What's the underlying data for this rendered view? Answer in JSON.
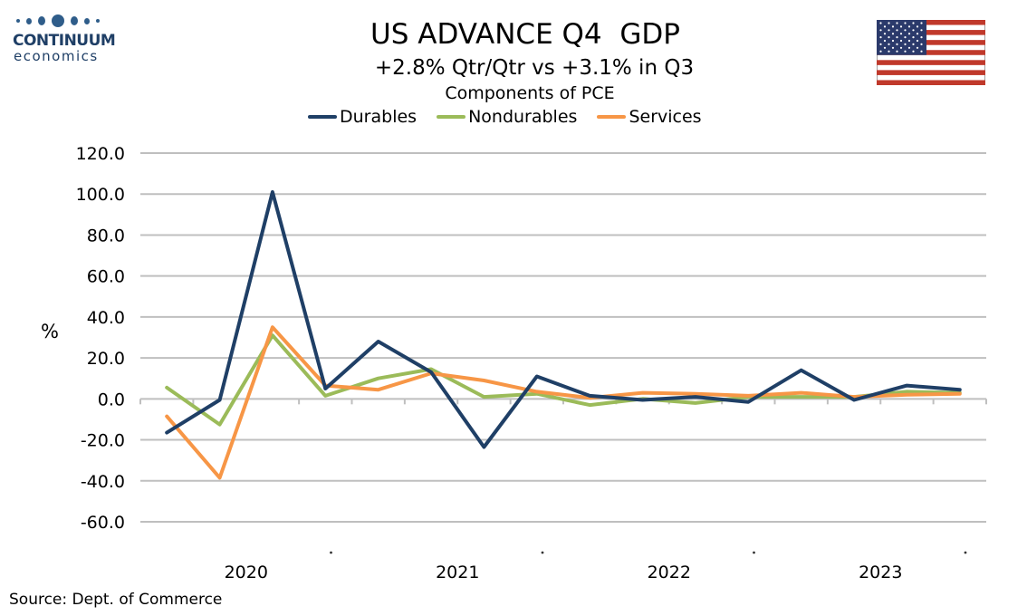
{
  "logo": {
    "name": "CONTINUUM",
    "sub": "economics"
  },
  "header": {
    "title": "US ADVANCE Q4  GDP",
    "subtitle": "+2.8% Qtr/Qtr vs +3.1% in Q3",
    "subsubtitle": "Components of PCE"
  },
  "flag": {
    "icon": "us-flag-icon"
  },
  "source": "Source: Dept. of Commerce",
  "chart_data": {
    "type": "line",
    "ylabel": "%",
    "ylim": [
      -60,
      120
    ],
    "yticks": [
      "120.0",
      "100.0",
      "80.0",
      "60.0",
      "40.0",
      "20.0",
      "0.0",
      "-20.0",
      "-40.0",
      "-60.0"
    ],
    "ytick_values": [
      120,
      100,
      80,
      60,
      40,
      20,
      0,
      -20,
      -40,
      -60
    ],
    "year_labels": [
      "2020",
      "2021",
      "2022",
      "2023"
    ],
    "x": [
      "2020Q1",
      "2020Q2",
      "2020Q3",
      "2020Q4",
      "2021Q1",
      "2021Q2",
      "2021Q3",
      "2021Q4",
      "2022Q1",
      "2022Q2",
      "2022Q3",
      "2022Q4",
      "2023Q1",
      "2023Q2",
      "2023Q3",
      "2023Q4"
    ],
    "grid": true,
    "legend_position": "top",
    "series": [
      {
        "name": "Durables",
        "color": "#1f3f66",
        "values": [
          -16.5,
          -0.5,
          101,
          5,
          28,
          13,
          -23.5,
          11,
          1.5,
          -0.5,
          1,
          -1.5,
          14,
          -0.5,
          6.5,
          4.5
        ]
      },
      {
        "name": "Nondurables",
        "color": "#9bbb59",
        "values": [
          5.5,
          -12.5,
          31,
          1.5,
          10,
          14.5,
          1,
          2.5,
          -3,
          0,
          -2,
          1,
          1,
          1,
          3.5,
          3
        ]
      },
      {
        "name": "Services",
        "color": "#f79646",
        "values": [
          -8.5,
          -38.5,
          35,
          6.5,
          4.5,
          12.5,
          9,
          3.5,
          0.5,
          3,
          2.5,
          1.5,
          3,
          1,
          2,
          2.5
        ]
      }
    ]
  }
}
